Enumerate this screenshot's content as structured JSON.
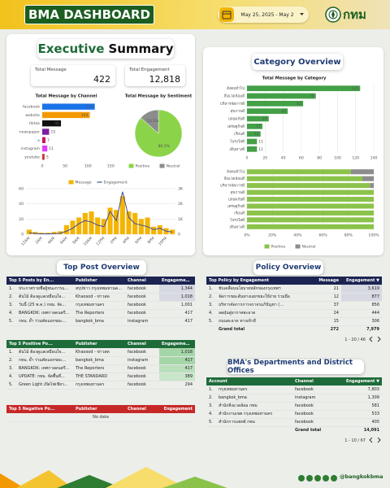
{
  "header": {
    "title": "BMA DASHBOARD",
    "date_range": "May 25, 2025 - May 2",
    "logo": "กทม"
  },
  "executive_summary": {
    "title_bold": "Executive",
    "title_rest": "Summary",
    "kpis": [
      {
        "label": "Total Message",
        "value": "422"
      },
      {
        "label": "Total Engagement",
        "value": "12,818"
      }
    ]
  },
  "category_overview": {
    "title": "Category Overview"
  },
  "chart_data": [
    {
      "type": "bar",
      "title": "Total Message by Channel",
      "categories": [
        "facebook",
        "website",
        "tiktok",
        "newspaper",
        "x",
        "instagram",
        "youtube"
      ],
      "values": [
        115,
        104,
        41,
        15,
        7,
        11,
        5
      ],
      "colors": [
        "#1a73e8",
        "#f29900",
        "#111111",
        "#7b1fa2",
        "#c2185b",
        "#e040fb",
        "#d32f2f"
      ],
      "show_values": true,
      "grid": false,
      "xlim": [
        0,
        160
      ],
      "xticks": [
        0,
        50,
        100,
        150
      ]
    },
    {
      "type": "pie",
      "title": "Total Message by Sentiment",
      "categories": [
        "Positive",
        "Neutral"
      ],
      "values": [
        86.5,
        13.5
      ],
      "value_labels": [
        "86.5%",
        "13.5%"
      ],
      "colors": [
        "#8bd44a",
        "#8c8c8c"
      ],
      "legend": "bottom"
    },
    {
      "type": "combo",
      "categories": [
        "12AM",
        null,
        "2AM",
        null,
        "4AM",
        null,
        "6AM",
        null,
        "8AM",
        null,
        "10AM",
        null,
        "12PM",
        null,
        "2PM",
        null,
        "4PM",
        null,
        "6PM",
        null,
        "8PM",
        null,
        "10PM",
        null
      ],
      "series": [
        {
          "name": "Message",
          "type": "bar",
          "color": "#f4b400",
          "values": [
            6,
            3,
            2,
            2,
            3,
            4,
            12,
            18,
            22,
            28,
            30,
            22,
            20,
            35,
            32,
            50,
            30,
            28,
            20,
            22,
            10,
            12,
            8,
            6
          ]
        },
        {
          "name": "Engagement",
          "type": "line",
          "axis": "y2",
          "color": "#3c4f9a",
          "values": [
            100,
            50,
            30,
            20,
            40,
            60,
            200,
            400,
            700,
            900,
            800,
            600,
            500,
            1500,
            900,
            2800,
            1100,
            700,
            600,
            500,
            300,
            400,
            200,
            150
          ]
        }
      ],
      "ylim": [
        0,
        60
      ],
      "yticks": [
        0,
        20,
        40,
        60
      ],
      "y2lim": [
        0,
        3000
      ],
      "y2ticks": [
        0,
        {
          "value": 1000,
          "label": "1K"
        },
        {
          "value": 2000,
          "label": "2K"
        },
        {
          "value": 3000,
          "label": "3K"
        }
      ],
      "grid": true,
      "legend": "top"
    },
    {
      "type": "bar",
      "title": "Total Message by Category",
      "categories": [
        "สังคมทั่วไป",
        "สิ่งแวดล้อมดี",
        "บริหารจัดการดี",
        "สุขภาพดี",
        "ปลอดภัยดี",
        "เศรษฐกิจดี",
        "เรียนดี",
        "โปร่งใสดี",
        "เดินทางดี"
      ],
      "values": [
        125,
        76,
        62,
        45,
        24,
        17,
        15,
        11,
        11
      ],
      "color": "#43a047",
      "show_values": true,
      "grid": true,
      "xlim": [
        0,
        140
      ],
      "xticks": [
        0,
        20,
        40,
        60,
        80,
        100,
        120,
        140
      ]
    },
    {
      "type": "stacked",
      "categories": [
        "สังคมทั่วไป",
        "สิ่งแวดล้อมดี",
        "บริหารจัดการดี",
        "สุขภาพดี",
        "ปลอดภัยดี",
        "เศรษฐกิจดี",
        "เรียนดี",
        "โปร่งใสดี",
        "เดินทางดี"
      ],
      "series": [
        {
          "name": "Positive",
          "color": "#8bc34a",
          "values": [
            82,
            91,
            97,
            100,
            100,
            100,
            100,
            100,
            100
          ]
        },
        {
          "name": "Neutral",
          "color": "#8c8c8c",
          "values": [
            18,
            9,
            3,
            0,
            0,
            0,
            0,
            0,
            0
          ]
        }
      ],
      "xlim": [
        0,
        100
      ],
      "xticks": [
        {
          "value": 0,
          "label": "0%"
        },
        {
          "value": 20,
          "label": "20%"
        },
        {
          "value": 40,
          "label": "40%"
        },
        {
          "value": 60,
          "label": "60%"
        },
        {
          "value": 80,
          "label": "80%"
        },
        {
          "value": 100,
          "label": "100%"
        }
      ],
      "grid": true,
      "legend": "bottom"
    }
  ],
  "top_post_overview": {
    "title": "Top Post Overview",
    "tables": [
      {
        "columns": [
          "Top 5 Posts by En...",
          "Publisher",
          "Channel",
          "Engagement ▼"
        ],
        "rows": [
          [
            "1.",
            "ประกาศรายชื่อผู้ชนะการแข่ง...",
            "สรุปข่าว กรุงเทพมหานคร - ...",
            "facebook",
            "1,344"
          ],
          [
            "2.",
            "ต้นไม้ ต้องดูแลเหมือนใจ...",
            "Khaosod - ข่าวสด",
            "facebook",
            "1,018"
          ],
          [
            "3.",
            "วันนี้ (25 พ.ค.) กทม. จัด...",
            "กรุงเทพมหานคร",
            "facebook",
            "1,001"
          ],
          [
            "4.",
            "BANGKOK: เทศกาลดนตรี...",
            "The Reporters",
            "facebook",
            "417"
          ],
          [
            "5.",
            "กทม. ย้ำ ร่วมคัดแยกขยะ...",
            "bangkok_bma",
            "instagram",
            "417"
          ]
        ]
      },
      {
        "columns": [
          "Top 5 Positive Po...",
          "Publisher",
          "Channel",
          "Engagement ▼"
        ],
        "rows": [
          [
            "1.",
            "ต้นไม้ ต้องดูแลเหมือนใจ...",
            "Khaosod - ข่าวสด",
            "facebook",
            "1,018"
          ],
          [
            "2.",
            "กทม. ย้ำ ร่วมคัดแยกขยะ...",
            "bangkok_bma",
            "instagram",
            "417"
          ],
          [
            "3.",
            "BANGKOK: เทศกาลดนตรี...",
            "The Reporters",
            "facebook",
            "417"
          ],
          [
            "4.",
            "UPDATE: กทม. จัดพื้นที่...",
            "THE STANDARD",
            "facebook",
            "389"
          ],
          [
            "5.",
            "Green Light เปิดไฟเขียว...",
            "กรุงเทพมหานคร",
            "facebook",
            "294"
          ]
        ]
      },
      {
        "columns": [
          "Top 5 Negative Po...",
          "Publisher",
          "Channel",
          "Engagement"
        ],
        "empty": "No data"
      }
    ]
  },
  "policy_overview": {
    "title": "Policy Overview",
    "table": {
      "columns": [
        "Top Policy by Engagement",
        "Message",
        "Engagement ▼"
      ],
      "rows": [
        [
          "1.",
          "ขับเคลื่อนนโยบายหลักของกรุงเทพฯ",
          "21",
          "3,619"
        ],
        [
          "2.",
          "จัดการขยะต้นทางแยกขยะให้ง่าย ร่วมมือ",
          "12",
          "877"
        ],
        [
          "3.",
          "บริหารจัดการการจราจรแก้ปัญหา (...",
          "37",
          "856"
        ],
        [
          "4.",
          "ลดฝุ่นสู่อากาศสะอาด",
          "24",
          "444"
        ],
        [
          "5.",
          "ถนนสะอาด ทางเท้าดี",
          "15",
          "306"
        ]
      ],
      "total": [
        "Grand total",
        "272",
        "7,979"
      ],
      "pagination": "1 - 20 / 46"
    }
  },
  "departments": {
    "title": "BMA's Departments and District Offices",
    "table": {
      "columns": [
        "Account",
        "Channel",
        "Engagement ▼"
      ],
      "rows": [
        [
          "1.",
          "กรุงเทพมหานคร",
          "facebook",
          "7,803"
        ],
        [
          "2.",
          "bangkok_bma",
          "instagram",
          "1,309"
        ],
        [
          "3.",
          "สำนักสิ่งแวดล้อม กทม",
          "facebook",
          "581"
        ],
        [
          "4.",
          "สำนักงานเขต กรุงเทพมหานคร",
          "facebook",
          "533"
        ],
        [
          "5.",
          "สำนักการแพทย์ กทม",
          "facebook",
          "405"
        ]
      ],
      "total": [
        "Grand total",
        "14,091"
      ],
      "pagination": "1 - 10 / 67"
    }
  },
  "footer": {
    "handle": "@bangkokbma"
  }
}
